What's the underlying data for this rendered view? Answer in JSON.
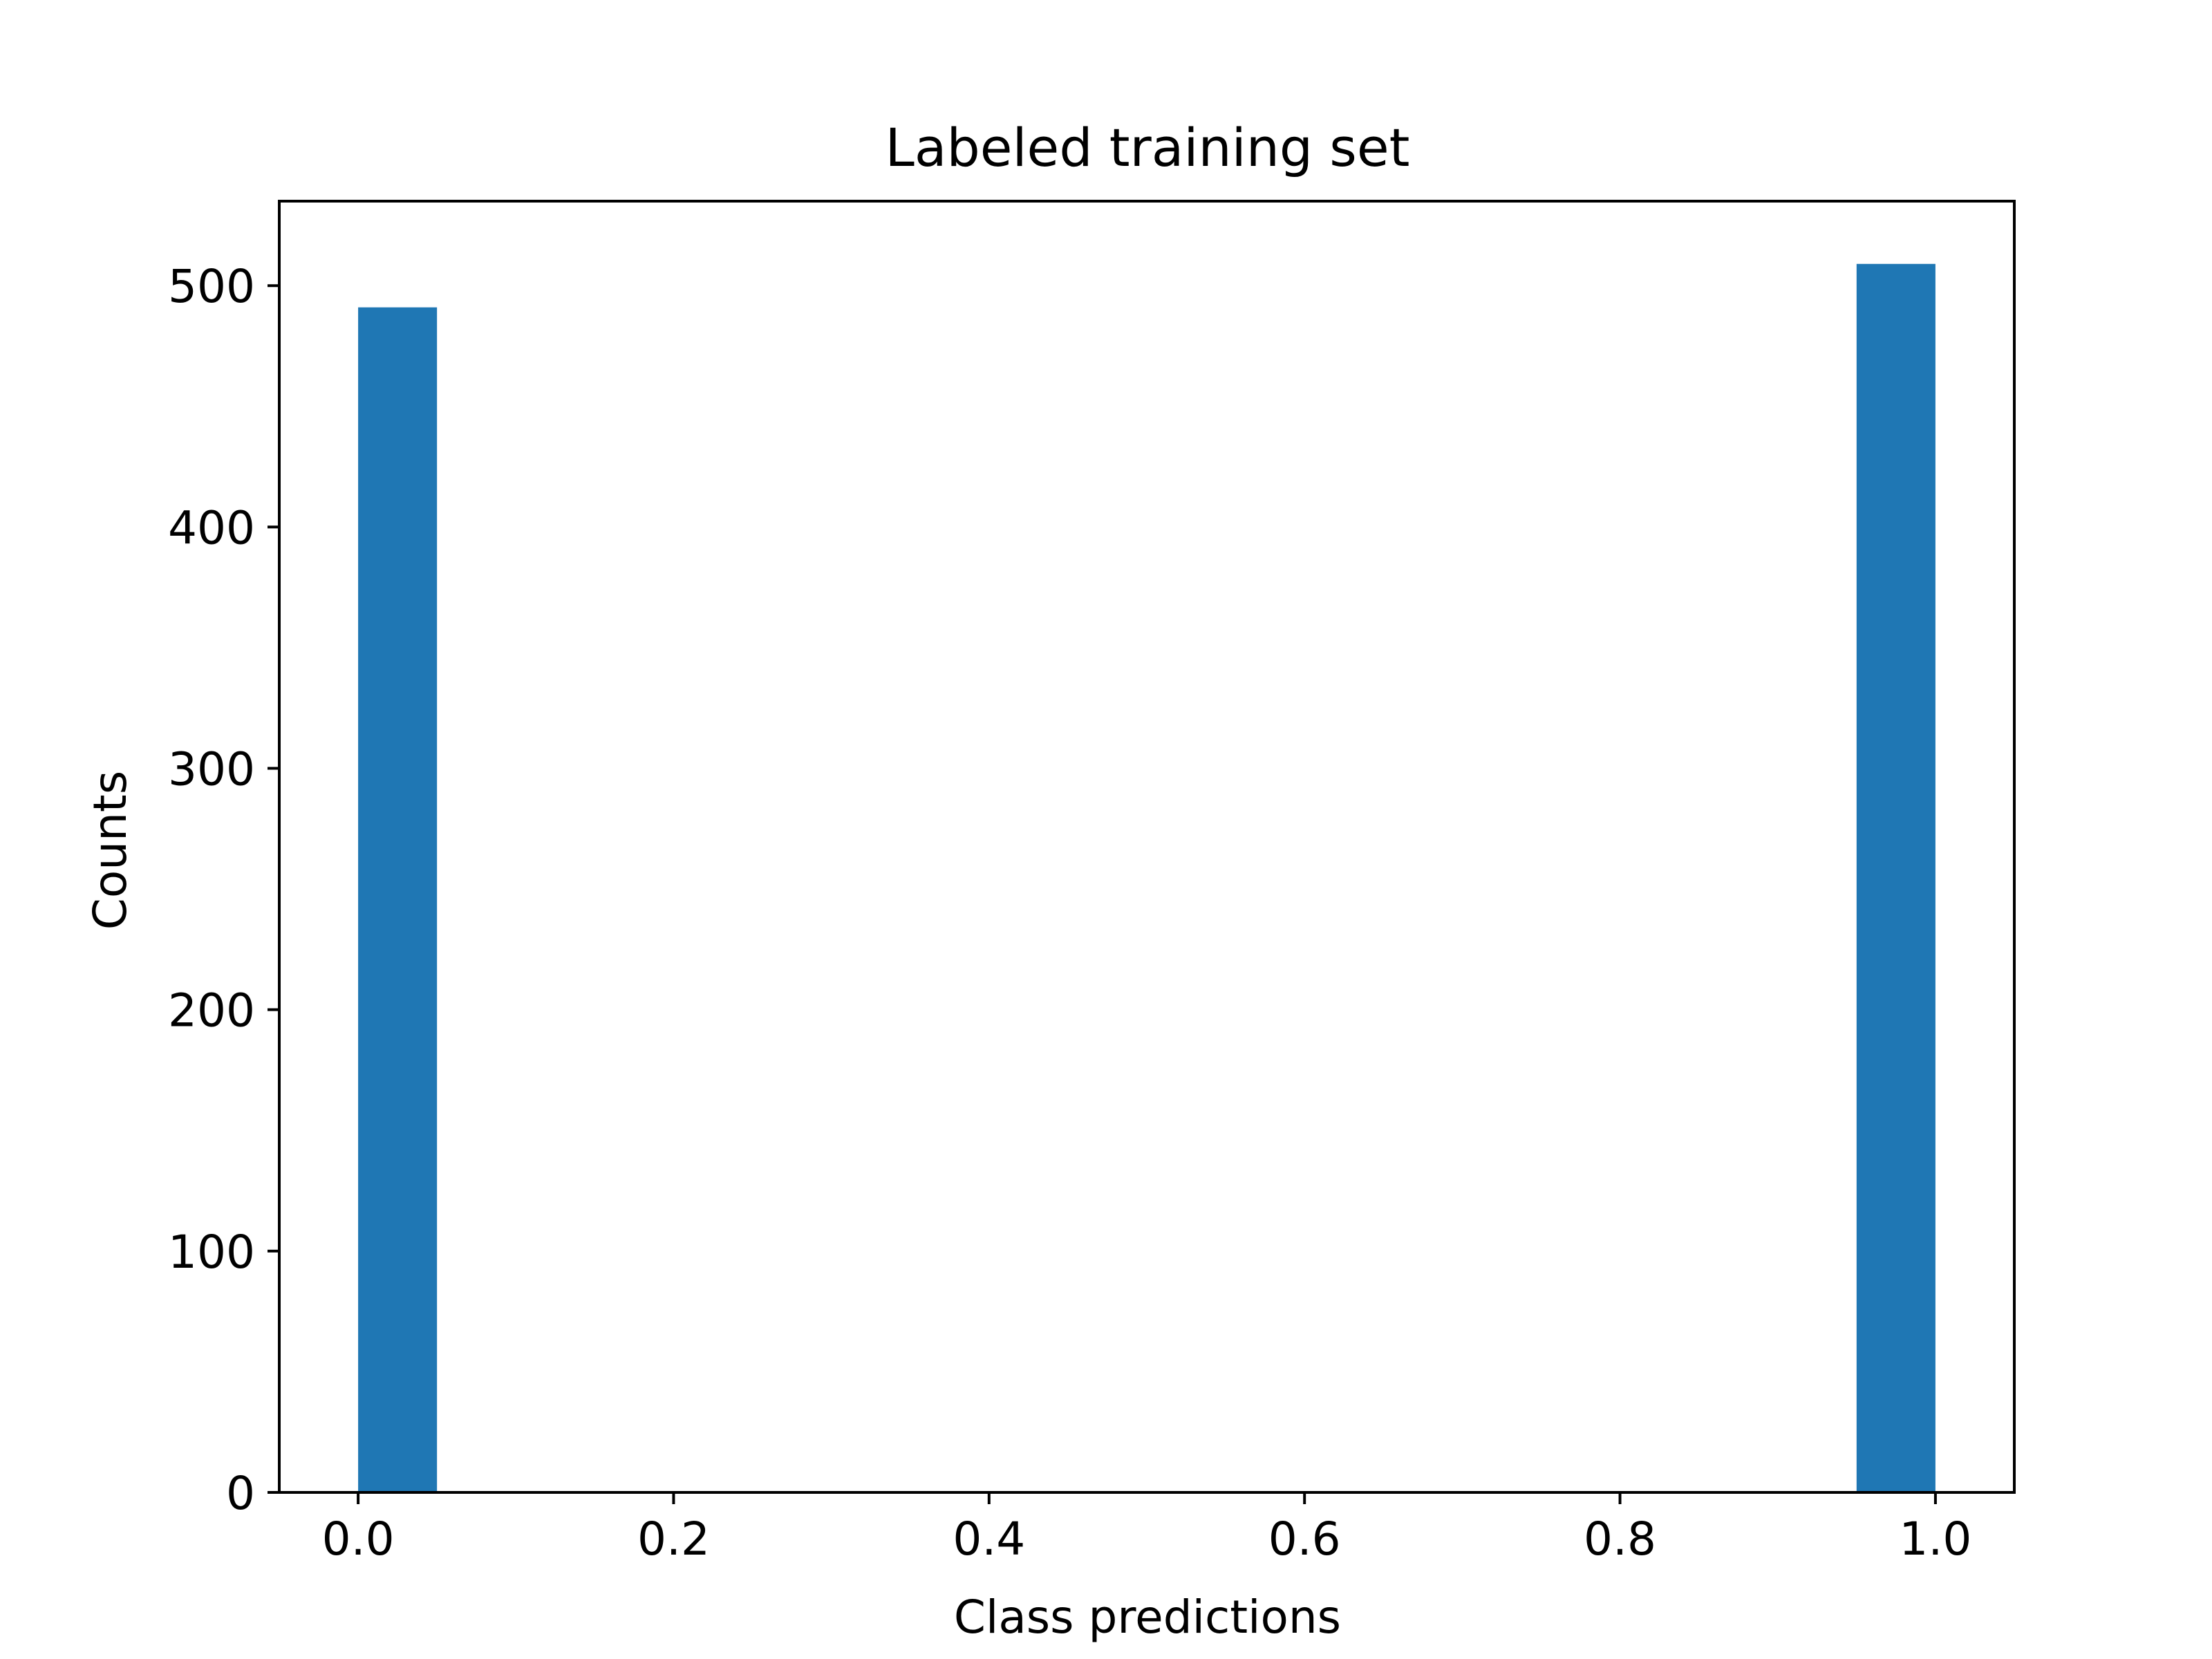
{
  "chart_data": {
    "type": "bar",
    "title": "Labeled training set",
    "xlabel": "Class predictions",
    "ylabel": "Counts",
    "xlim": [
      -0.05,
      1.05
    ],
    "ylim": [
      0,
      535
    ],
    "xticks": [
      {
        "value": 0.0,
        "label": "0.0"
      },
      {
        "value": 0.2,
        "label": "0.2"
      },
      {
        "value": 0.4,
        "label": "0.4"
      },
      {
        "value": 0.6,
        "label": "0.6"
      },
      {
        "value": 0.8,
        "label": "0.8"
      },
      {
        "value": 1.0,
        "label": "1.0"
      }
    ],
    "yticks": [
      {
        "value": 0,
        "label": "0"
      },
      {
        "value": 100,
        "label": "100"
      },
      {
        "value": 200,
        "label": "200"
      },
      {
        "value": 300,
        "label": "300"
      },
      {
        "value": 400,
        "label": "400"
      },
      {
        "value": 500,
        "label": "500"
      }
    ],
    "bars": [
      {
        "x0": 0.0,
        "x1": 0.05,
        "value": 491
      },
      {
        "x0": 0.95,
        "x1": 1.0,
        "value": 509
      }
    ],
    "bar_color": "#1f77b4",
    "grid": false,
    "legend": "none"
  }
}
